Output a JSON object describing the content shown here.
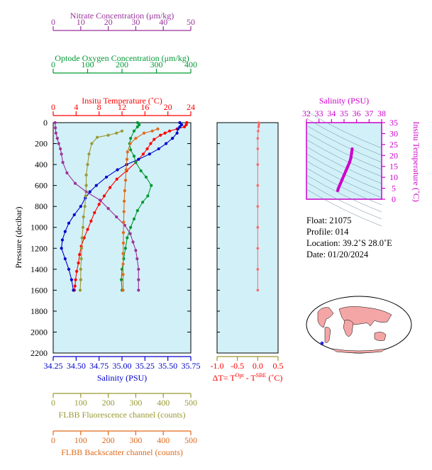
{
  "chart_data": {
    "type": "line",
    "axes": {
      "nitrate": {
        "label": "Nitrate Concentration (μm/kg)",
        "range": [
          0,
          50
        ],
        "ticks": [
          0,
          10,
          20,
          30,
          40,
          50
        ],
        "color": "#993399"
      },
      "oxygen": {
        "label": "Optode Oxygen Concentration (μm/kg)",
        "range": [
          0,
          400
        ],
        "ticks": [
          0,
          100,
          200,
          300,
          400
        ],
        "color": "#009933"
      },
      "temperature": {
        "label": "Insitu Temperature (˚C)",
        "range": [
          0,
          24
        ],
        "ticks": [
          0,
          4,
          8,
          12,
          16,
          20,
          24
        ],
        "color": "#ff0000"
      },
      "salinity": {
        "label": "Salinity (PSU)",
        "range": [
          34.25,
          35.75
        ],
        "ticks": [
          "34.25",
          "34.50",
          "34.75",
          "35.00",
          "35.25",
          "35.50",
          "35.75"
        ],
        "color": "#0000cc"
      },
      "fluorescence": {
        "label": "FLBB Fluorescence channel (counts)",
        "range": [
          0,
          500
        ],
        "ticks": [
          0,
          100,
          200,
          300,
          400,
          500
        ],
        "color": "#999933"
      },
      "backscatter": {
        "label": "FLBB Backscatter channel (counts)",
        "range": [
          0,
          500
        ],
        "ticks": [
          0,
          100,
          200,
          300,
          400,
          500
        ],
        "color": "#e06a1a"
      },
      "pressure": {
        "label": "Pressure (decibar)",
        "range": [
          0,
          2200
        ],
        "ticks": [
          0,
          200,
          400,
          600,
          800,
          1000,
          1200,
          1400,
          1600,
          1800,
          2000,
          2200
        ],
        "reversed": true
      },
      "delta_t": {
        "label_main": "ΔT= T",
        "sup1": "Opt",
        "label_mid": " - T",
        "sup2": "SBE",
        "label_end": " (˚C)",
        "range": [
          -1.0,
          0.5
        ],
        "ticks": [
          "-1.0",
          "-0.5",
          "0.0",
          "0.5"
        ],
        "color": "#ff0000"
      }
    },
    "series": [
      {
        "name": "Temperature",
        "axis": "temperature",
        "color": "#ff0000",
        "points": [
          [
            23.3,
            0
          ],
          [
            23.2,
            20
          ],
          [
            22.9,
            40
          ],
          [
            21.6,
            60
          ],
          [
            20.3,
            80
          ],
          [
            19.5,
            100
          ],
          [
            18.7,
            120
          ],
          [
            17.6,
            160
          ],
          [
            17.0,
            200
          ],
          [
            16.4,
            250
          ],
          [
            15.7,
            300
          ],
          [
            14.4,
            380
          ],
          [
            12.8,
            460
          ],
          [
            11.1,
            540
          ],
          [
            9.9,
            620
          ],
          [
            8.9,
            700
          ],
          [
            8.0,
            780
          ],
          [
            7.2,
            860
          ],
          [
            6.6,
            940
          ],
          [
            6.0,
            1020
          ],
          [
            5.4,
            1100
          ],
          [
            4.9,
            1180
          ],
          [
            4.6,
            1260
          ],
          [
            4.4,
            1340
          ],
          [
            4.1,
            1420
          ],
          [
            3.9,
            1500
          ],
          [
            3.8,
            1560
          ],
          [
            3.7,
            1600
          ]
        ]
      },
      {
        "name": "Salinity",
        "axis": "salinity",
        "color": "#0000cc",
        "points": [
          [
            35.63,
            0
          ],
          [
            35.65,
            20
          ],
          [
            35.63,
            40
          ],
          [
            35.61,
            60
          ],
          [
            35.6,
            100
          ],
          [
            35.55,
            150
          ],
          [
            35.48,
            200
          ],
          [
            35.4,
            250
          ],
          [
            35.3,
            300
          ],
          [
            35.18,
            350
          ],
          [
            35.05,
            400
          ],
          [
            34.95,
            450
          ],
          [
            34.83,
            520
          ],
          [
            34.72,
            600
          ],
          [
            34.65,
            660
          ],
          [
            34.6,
            720
          ],
          [
            34.55,
            800
          ],
          [
            34.48,
            880
          ],
          [
            34.42,
            960
          ],
          [
            34.38,
            1040
          ],
          [
            34.35,
            1120
          ],
          [
            34.34,
            1200
          ],
          [
            34.38,
            1300
          ],
          [
            34.42,
            1400
          ],
          [
            34.45,
            1500
          ],
          [
            34.47,
            1600
          ]
        ]
      },
      {
        "name": "Oxygen",
        "axis": "oxygen",
        "color": "#009933",
        "points": [
          [
            245,
            0
          ],
          [
            250,
            20
          ],
          [
            245,
            40
          ],
          [
            235,
            80
          ],
          [
            225,
            150
          ],
          [
            222,
            200
          ],
          [
            225,
            260
          ],
          [
            235,
            320
          ],
          [
            240,
            380
          ],
          [
            255,
            460
          ],
          [
            270,
            520
          ],
          [
            285,
            600
          ],
          [
            275,
            700
          ],
          [
            260,
            760
          ],
          [
            245,
            840
          ],
          [
            235,
            920
          ],
          [
            225,
            1000
          ],
          [
            215,
            1100
          ],
          [
            210,
            1200
          ],
          [
            205,
            1300
          ],
          [
            200,
            1400
          ],
          [
            198,
            1500
          ],
          [
            200,
            1600
          ]
        ]
      },
      {
        "name": "Nitrate",
        "axis": "nitrate",
        "color": "#993399",
        "points": [
          [
            0.7,
            0
          ],
          [
            0.8,
            50
          ],
          [
            1.0,
            100
          ],
          [
            1.5,
            150
          ],
          [
            2.0,
            200
          ],
          [
            2.6,
            250
          ],
          [
            3.0,
            300
          ],
          [
            3.5,
            380
          ],
          [
            5.0,
            480
          ],
          [
            8.0,
            580
          ],
          [
            12,
            660
          ],
          [
            17,
            740
          ],
          [
            20,
            820
          ],
          [
            23,
            900
          ],
          [
            26,
            980
          ],
          [
            28,
            1060
          ],
          [
            29,
            1140
          ],
          [
            30,
            1220
          ],
          [
            30.5,
            1300
          ],
          [
            31,
            1400
          ],
          [
            31,
            1500
          ],
          [
            31,
            1600
          ]
        ]
      },
      {
        "name": "Fluorescence",
        "axis": "fluorescence",
        "color": "#999933",
        "points": [
          [
            250,
            80
          ],
          [
            230,
            100
          ],
          [
            200,
            120
          ],
          [
            160,
            140
          ],
          [
            140,
            200
          ],
          [
            130,
            300
          ],
          [
            125,
            400
          ],
          [
            120,
            500
          ],
          [
            120,
            600
          ],
          [
            118,
            700
          ],
          [
            115,
            800
          ],
          [
            110,
            900
          ],
          [
            108,
            1000
          ],
          [
            105,
            1100
          ],
          [
            103,
            1200
          ],
          [
            102,
            1300
          ],
          [
            100,
            1400
          ],
          [
            100,
            1500
          ],
          [
            98,
            1600
          ]
        ]
      },
      {
        "name": "Backscatter",
        "axis": "backscatter",
        "color": "#e06a1a",
        "points": [
          [
            380,
            60
          ],
          [
            360,
            80
          ],
          [
            330,
            100
          ],
          [
            300,
            150
          ],
          [
            280,
            200
          ],
          [
            270,
            280
          ],
          [
            268,
            350
          ],
          [
            265,
            450
          ],
          [
            263,
            550
          ],
          [
            260,
            650
          ],
          [
            258,
            750
          ],
          [
            257,
            850
          ],
          [
            256,
            950
          ],
          [
            255,
            1050
          ],
          [
            255,
            1150
          ],
          [
            254,
            1250
          ],
          [
            254,
            1350
          ],
          [
            254,
            1450
          ],
          [
            254,
            1600
          ]
        ]
      },
      {
        "name": "DeltaT",
        "axis": "delta_t",
        "color": "#ff6666",
        "points": [
          [
            0.02,
            0
          ],
          [
            0.03,
            20
          ],
          [
            0.02,
            40
          ],
          [
            0.01,
            80
          ],
          [
            0.0,
            150
          ],
          [
            0.0,
            250
          ],
          [
            0.0,
            400
          ],
          [
            0.0,
            600
          ],
          [
            0.0,
            800
          ],
          [
            0.0,
            1000
          ],
          [
            0.0,
            1200
          ],
          [
            0.0,
            1400
          ],
          [
            0.0,
            1600
          ]
        ]
      }
    ],
    "ts_inset": {
      "xlabel": "Salinity (PSU)",
      "ylabel": "Insitu Temperature (˚C)",
      "xlim": [
        32,
        38
      ],
      "ylim": [
        0,
        35
      ],
      "xticks": [
        32,
        33,
        34,
        35,
        36,
        37,
        38
      ],
      "yticks": [
        0,
        5,
        10,
        15,
        20,
        25,
        30,
        35
      ],
      "color": "#cc00cc",
      "points": [
        [
          34.5,
          4
        ],
        [
          34.55,
          5
        ],
        [
          34.7,
          7
        ],
        [
          34.85,
          9
        ],
        [
          35.0,
          11
        ],
        [
          35.15,
          13
        ],
        [
          35.3,
          15
        ],
        [
          35.45,
          17
        ],
        [
          35.55,
          19
        ],
        [
          35.6,
          21
        ],
        [
          35.65,
          23
        ]
      ]
    }
  },
  "info": {
    "float": "Float:  21075",
    "profile": "Profile:  014",
    "location": "Location:  39.2˚S  28.0˚E",
    "date": "Date:  01/20/2024"
  },
  "map": {
    "marker_color": "#0000ff",
    "land_color": "#f4a6a6",
    "ocean_color": "#ffffff"
  }
}
